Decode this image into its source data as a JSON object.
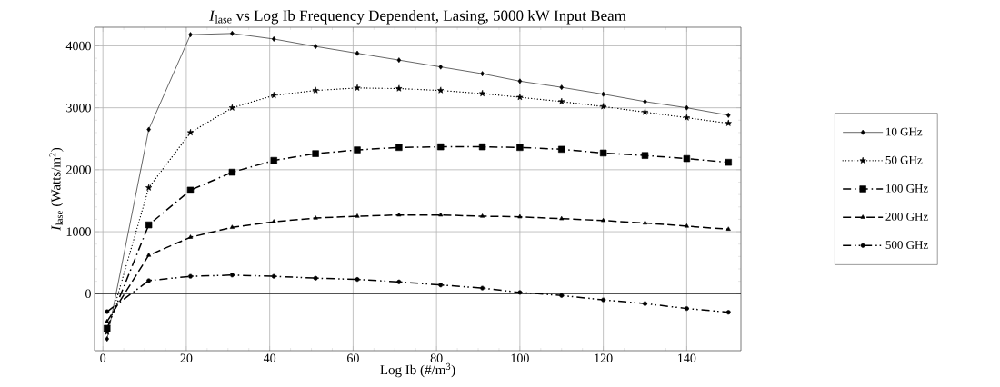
{
  "chart_data": {
    "type": "line",
    "title": "*I*$_{lase}$ vs Log Ib Frequency Dependent, Lasing, 5000 kW Input Beam",
    "xlabel": "Log Ib (#/m$^{3}$)",
    "ylabel": "*I*$_{lase}$ (Watts/m$^{2}$)",
    "x": [
      1,
      11,
      21,
      31,
      41,
      51,
      61,
      71,
      81,
      91,
      100,
      110,
      120,
      130,
      140,
      150
    ],
    "series": [
      {
        "name": "10 GHz",
        "color": "#000000",
        "marker": "diamond",
        "line_style": "solid",
        "values": [
          -730,
          2650,
          4180,
          4200,
          4110,
          3990,
          3880,
          3770,
          3660,
          3550,
          3430,
          3330,
          3220,
          3100,
          3000,
          2880
        ]
      },
      {
        "name": "50 GHz",
        "color": "#000000",
        "marker": "star",
        "line_style": "dotted",
        "values": [
          -620,
          1710,
          2600,
          3000,
          3200,
          3280,
          3320,
          3310,
          3280,
          3230,
          3170,
          3100,
          3020,
          2930,
          2840,
          2750
        ]
      },
      {
        "name": "100 GHz",
        "color": "#000000",
        "marker": "square",
        "line_style": "dashdot",
        "values": [
          -560,
          1110,
          1670,
          1960,
          2150,
          2260,
          2320,
          2360,
          2370,
          2370,
          2360,
          2330,
          2270,
          2230,
          2180,
          2120
        ]
      },
      {
        "name": "200 GHz",
        "color": "#000000",
        "marker": "triangle",
        "line_style": "dashed",
        "values": [
          -450,
          620,
          910,
          1070,
          1160,
          1220,
          1250,
          1270,
          1270,
          1250,
          1240,
          1210,
          1180,
          1140,
          1090,
          1040
        ]
      },
      {
        "name": "500 GHz",
        "color": "#000000",
        "marker": "circle",
        "line_style": "dashdotdot",
        "values": [
          -290,
          210,
          280,
          300,
          280,
          250,
          230,
          190,
          140,
          90,
          20,
          -30,
          -100,
          -160,
          -240,
          -300
        ]
      }
    ],
    "xlim": [
      -2,
      153
    ],
    "ylim": [
      -920,
      4300
    ],
    "xticks": [
      0,
      20,
      40,
      60,
      80,
      100,
      120,
      140
    ],
    "yticks": [
      0,
      1000,
      2000,
      3000,
      4000
    ],
    "grid": true,
    "legend": "right",
    "ref_lines": [
      {
        "axis": "y",
        "value": 0,
        "color": "#000000"
      }
    ]
  }
}
